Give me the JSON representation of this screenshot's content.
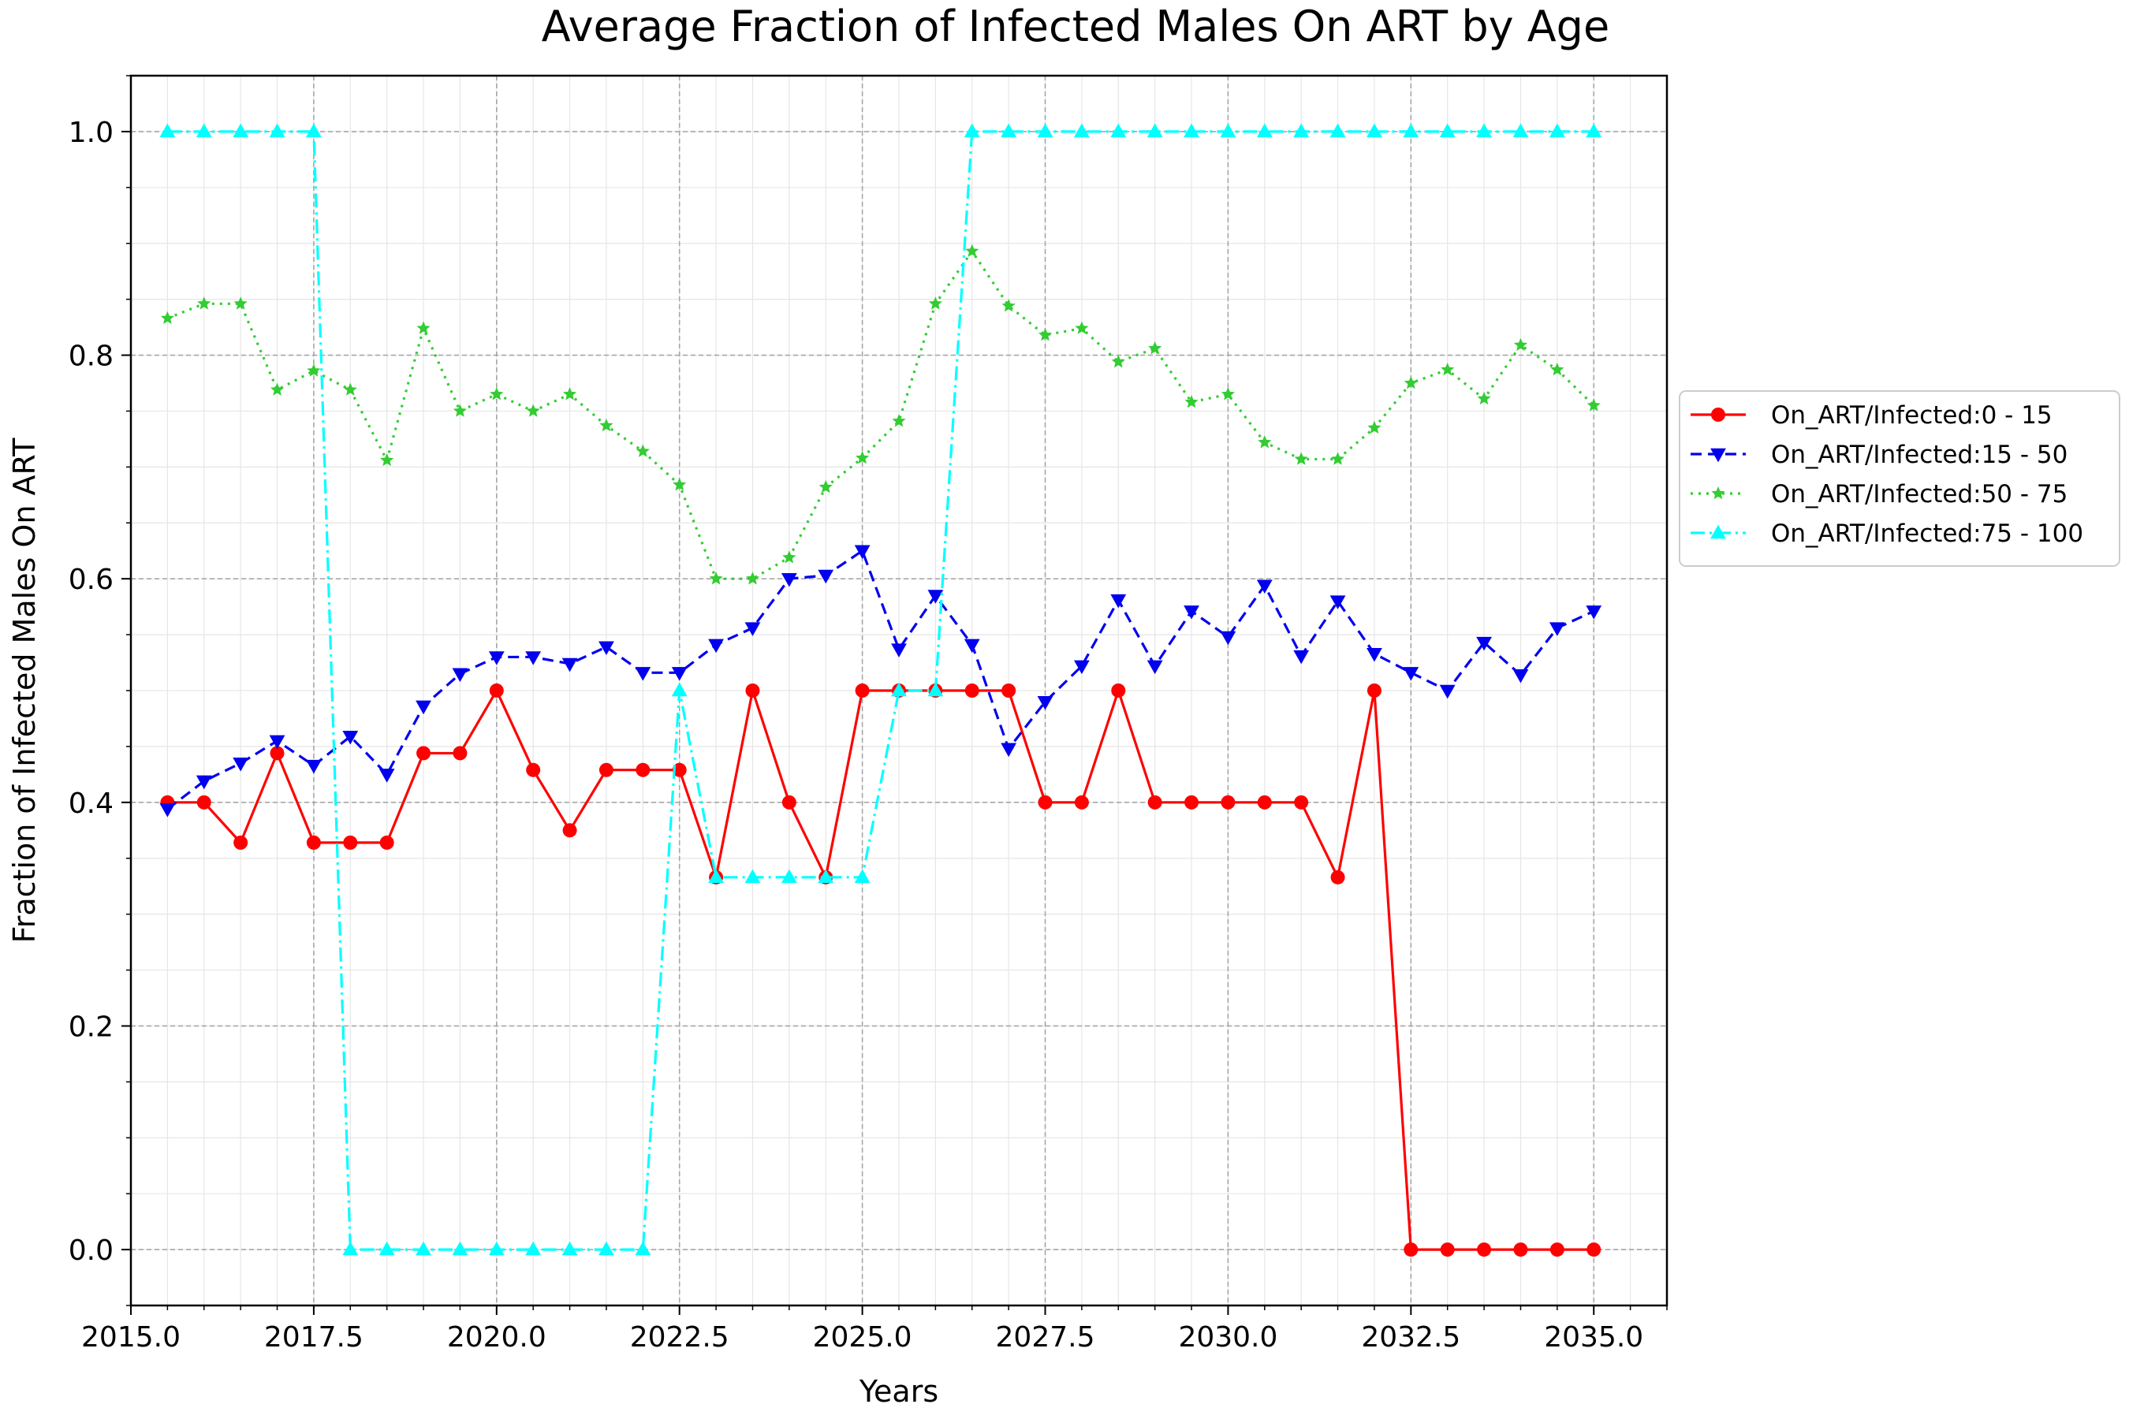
{
  "chart_data": {
    "type": "line",
    "title": "Average Fraction of Infected Males On ART by Age",
    "xlabel": "Years",
    "ylabel": "Fraction of Infected Males On ART",
    "xlim": [
      2015.0,
      2036.0
    ],
    "ylim": [
      -0.05,
      1.05
    ],
    "xticks": [
      2015.0,
      2017.5,
      2020.0,
      2022.5,
      2025.0,
      2027.5,
      2030.0,
      2032.5,
      2035.0
    ],
    "xtick_labels": [
      "2015.0",
      "2017.5",
      "2020.0",
      "2022.5",
      "2025.0",
      "2027.5",
      "2030.0",
      "2032.5",
      "2035.0"
    ],
    "yticks": [
      0.0,
      0.2,
      0.4,
      0.6,
      0.8,
      1.0
    ],
    "ytick_labels": [
      "0.0",
      "0.2",
      "0.4",
      "0.6",
      "0.8",
      "1.0"
    ],
    "grid": true,
    "minor_grid": true,
    "legend_position": "outside-right",
    "x": [
      2015.5,
      2016.0,
      2016.5,
      2017.0,
      2017.5,
      2018.0,
      2018.5,
      2019.0,
      2019.5,
      2020.0,
      2020.5,
      2021.0,
      2021.5,
      2022.0,
      2022.5,
      2023.0,
      2023.5,
      2024.0,
      2024.5,
      2025.0,
      2025.5,
      2026.0,
      2026.5,
      2027.0,
      2027.5,
      2028.0,
      2028.5,
      2029.0,
      2029.5,
      2030.0,
      2030.5,
      2031.0,
      2031.5,
      2032.0,
      2032.5,
      2033.0,
      2033.5,
      2034.0,
      2034.5,
      2035.0
    ],
    "series": [
      {
        "name": "On_ART/Infected:0 - 15",
        "color": "#ff0000",
        "line_style": "solid",
        "marker": "circle",
        "values": [
          0.4,
          0.4,
          0.364,
          0.444,
          0.364,
          0.364,
          0.364,
          0.444,
          0.444,
          0.5,
          0.429,
          0.375,
          0.429,
          0.429,
          0.429,
          0.333,
          0.5,
          0.4,
          0.333,
          0.5,
          0.5,
          0.5,
          0.5,
          0.5,
          0.4,
          0.4,
          0.5,
          0.4,
          0.4,
          0.4,
          0.4,
          0.4,
          0.333,
          0.5,
          0.0,
          0.0,
          0.0,
          0.0,
          0.0,
          0.0
        ]
      },
      {
        "name": "On_ART/Infected:15 - 50",
        "color": "#0000ee",
        "line_style": "dashed",
        "marker": "triangle-down",
        "values": [
          0.394,
          0.419,
          0.435,
          0.455,
          0.433,
          0.459,
          0.425,
          0.486,
          0.515,
          0.53,
          0.53,
          0.524,
          0.539,
          0.516,
          0.516,
          0.541,
          0.556,
          0.6,
          0.603,
          0.625,
          0.537,
          0.585,
          0.541,
          0.448,
          0.49,
          0.522,
          0.581,
          0.522,
          0.571,
          0.548,
          0.594,
          0.531,
          0.58,
          0.533,
          0.516,
          0.5,
          0.543,
          0.514,
          0.556,
          0.571
        ]
      },
      {
        "name": "On_ART/Infected:50 - 75",
        "color": "#33cc33",
        "line_style": "dotted",
        "marker": "star",
        "values": [
          0.833,
          0.846,
          0.846,
          0.769,
          0.786,
          0.769,
          0.706,
          0.824,
          0.75,
          0.765,
          0.75,
          0.765,
          0.737,
          0.714,
          0.684,
          0.6,
          0.6,
          0.619,
          0.682,
          0.708,
          0.741,
          0.846,
          0.893,
          0.844,
          0.818,
          0.824,
          0.794,
          0.806,
          0.758,
          0.765,
          0.722,
          0.707,
          0.707,
          0.735,
          0.775,
          0.787,
          0.761,
          0.809,
          0.787,
          0.755
        ]
      },
      {
        "name": "On_ART/Infected:75 - 100",
        "color": "#00ffff",
        "line_style": "dashdot",
        "marker": "triangle-up",
        "values": [
          1.0,
          1.0,
          1.0,
          1.0,
          1.0,
          0.0,
          0.0,
          0.0,
          0.0,
          0.0,
          0.0,
          0.0,
          0.0,
          0.0,
          0.5,
          0.333,
          0.333,
          0.333,
          0.333,
          0.333,
          0.5,
          0.5,
          1.0,
          1.0,
          1.0,
          1.0,
          1.0,
          1.0,
          1.0,
          1.0,
          1.0,
          1.0,
          1.0,
          1.0,
          1.0,
          1.0,
          1.0,
          1.0,
          1.0,
          1.0
        ]
      }
    ]
  }
}
